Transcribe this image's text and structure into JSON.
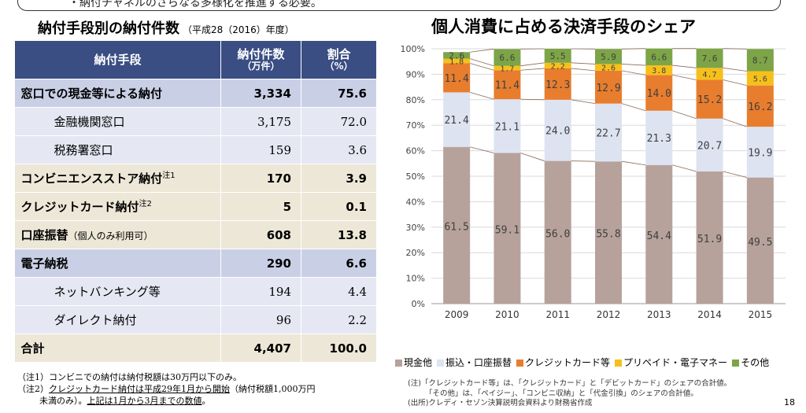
{
  "top_banner": "・納付チャネルのさらなる多様化を推進する必要。",
  "left_title": "納付手段別の納付件数",
  "left_subtitle": "（平成28（2016）年度）",
  "right_title": "個人消費に占める決済手段のシェア",
  "table": {
    "headers": {
      "method": "納付手段",
      "count": "納付件数",
      "count_unit": "（万件）",
      "ratio": "割合",
      "ratio_unit": "（%）"
    },
    "rows": [
      {
        "label": "窓口での現金等による納付",
        "count": "3,334",
        "ratio": "75.6"
      },
      {
        "label": "金融機関窓口",
        "count": "3,175",
        "ratio": "72.0"
      },
      {
        "label": "税務署窓口",
        "count": "159",
        "ratio": "3.6"
      },
      {
        "label": "コンビニエンスストア納付",
        "note": "注1",
        "count": "170",
        "ratio": "3.9"
      },
      {
        "label": "クレジットカード納付",
        "note": "注2",
        "count": "5",
        "ratio": "0.1"
      },
      {
        "label": "口座振替",
        "paren": "（個人のみ利用可）",
        "count": "608",
        "ratio": "13.8"
      },
      {
        "label": "電子納税",
        "count": "290",
        "ratio": "6.6"
      },
      {
        "label": "ネットバンキング等",
        "count": "194",
        "ratio": "4.4"
      },
      {
        "label": "ダイレクト納付",
        "count": "96",
        "ratio": "2.2"
      },
      {
        "label": "合計",
        "count": "4,407",
        "ratio": "100.0"
      }
    ]
  },
  "footnotes_left": {
    "n1": "（注1）コンビニでの納付は納付税額は30万円以下のみ。",
    "n2_prefix": "（注2）",
    "n2_u1": "クレジットカード納付は平成29年1月から開始",
    "n2_mid": "（納付税額1,000万円",
    "n2_line2a": "未満のみ）。",
    "n2_u2": "上記は1月から3月までの数値",
    "n2_end": "。"
  },
  "chart_data": {
    "type": "bar",
    "stacked": true,
    "categories": [
      "2009",
      "2010",
      "2011",
      "2012",
      "2013",
      "2014",
      "2015"
    ],
    "y_ticks": [
      "0%",
      "10%",
      "20%",
      "30%",
      "40%",
      "50%",
      "60%",
      "70%",
      "80%",
      "90%",
      "100%"
    ],
    "ylim": [
      0,
      100
    ],
    "series": [
      {
        "name": "現金他",
        "color": "#b6a29b",
        "values": [
          61.5,
          59.1,
          56.0,
          55.8,
          54.4,
          51.9,
          49.5
        ]
      },
      {
        "name": "振込・口座振替",
        "color": "#dde3f1",
        "values": [
          21.4,
          21.1,
          24.0,
          22.7,
          21.3,
          20.7,
          19.9
        ]
      },
      {
        "name": "クレジットカード等",
        "color": "#e87d2e",
        "values": [
          11.4,
          11.4,
          12.3,
          12.9,
          14.0,
          15.2,
          16.2
        ]
      },
      {
        "name": "プリペイド・電子マネー",
        "color": "#f6c01c",
        "values": [
          1.8,
          1.7,
          2.2,
          2.6,
          3.8,
          4.7,
          5.6
        ]
      },
      {
        "name": "その他",
        "color": "#7da447",
        "values": [
          2.6,
          6.6,
          5.5,
          5.9,
          6.6,
          7.6,
          8.7
        ]
      }
    ]
  },
  "footnotes_right": {
    "n1": "(注)「クレジットカード等」は、「クレジットカード」と「デビットカード」のシェアの合計値。",
    "n2": "「その他」は、「ペイジー」、「コンビニ収納」と「代金引換」のシェアの合計値。",
    "n3": "(出所)クレディ・セゾン決算説明会資料より財務省作成"
  },
  "page_number": "18"
}
